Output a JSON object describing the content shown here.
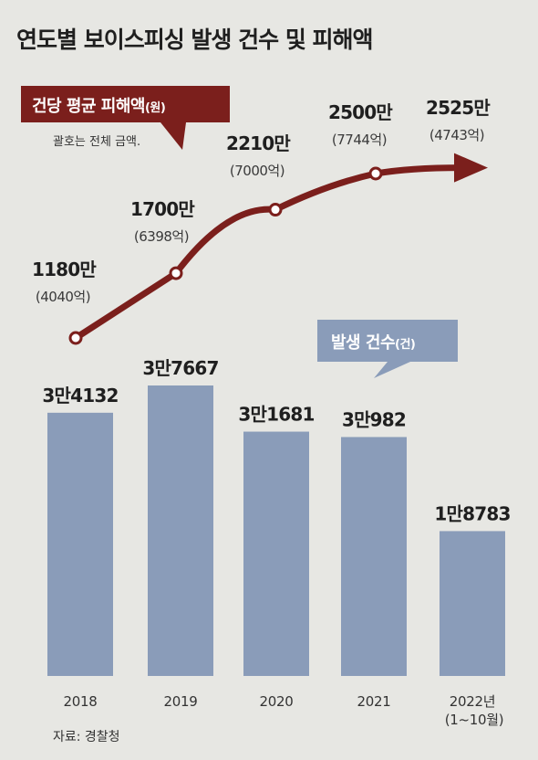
{
  "title": "연도별 보이스피싱 발생 건수 및 피해액",
  "source": "자료: 경찰청",
  "chart_data": [
    {
      "type": "line",
      "x": [
        "2018",
        "2019",
        "2020",
        "2021",
        "2022년(1~10월)"
      ],
      "values": [
        1180,
        1700,
        2210,
        2500,
        2525
      ],
      "value_labels": [
        "1180만",
        "1700만",
        "2210만",
        "2500만",
        "2525만"
      ],
      "sub_labels": [
        "(4040억)",
        "(6398억)",
        "(7000억)",
        "(7744억)",
        "(4743억)"
      ],
      "callout": "건당 평균 피해액",
      "callout_unit": "(원)",
      "note": "괄호는 전체 금액.",
      "color": "#7b1f1c"
    },
    {
      "type": "bar",
      "categories": [
        "2018",
        "2019",
        "2020",
        "2021",
        "2022년"
      ],
      "category_sub": [
        "",
        "",
        "",
        "",
        "(1~10월)"
      ],
      "values": [
        34132,
        37667,
        31681,
        30982,
        18783
      ],
      "value_labels": [
        "3만4132",
        "3만7667",
        "3만1681",
        "3만982",
        "1만8783"
      ],
      "callout": "발생 건수",
      "callout_unit": "(건)",
      "color": "#8a9cb9"
    }
  ]
}
